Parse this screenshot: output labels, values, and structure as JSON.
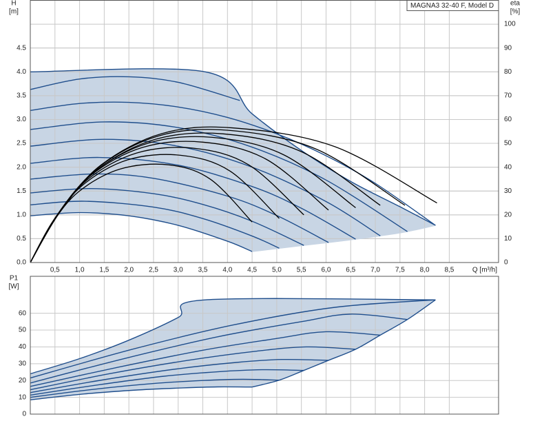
{
  "chart_data": [
    {
      "type": "line",
      "title": "MAGNA3 32-40 F, Model D",
      "ylabel": "H",
      "yunit": "[m]",
      "y2label": "eta",
      "y2unit": "[%]",
      "xlabel": "Q [m³/h]",
      "xlim": [
        0,
        9.5
      ],
      "ylim": [
        0,
        5.5
      ],
      "y2lim": [
        0,
        110
      ],
      "xticks": [
        {
          "value": 0.5,
          "label": "0,5"
        },
        {
          "value": 1,
          "label": "1,0"
        },
        {
          "value": 1.5,
          "label": "1,5"
        },
        {
          "value": 2,
          "label": "2,0"
        },
        {
          "value": 2.5,
          "label": "2,5"
        },
        {
          "value": 3,
          "label": "3,0"
        },
        {
          "value": 3.5,
          "label": "3,5"
        },
        {
          "value": 4,
          "label": "4,0"
        },
        {
          "value": 4.5,
          "label": "4,5"
        },
        {
          "value": 5,
          "label": "5,0"
        },
        {
          "value": 5.5,
          "label": "5,5"
        },
        {
          "value": 6,
          "label": "6,0"
        },
        {
          "value": 6.5,
          "label": "6,5"
        },
        {
          "value": 7,
          "label": "7,0"
        },
        {
          "value": 7.5,
          "label": "7,5"
        },
        {
          "value": 8,
          "label": "8,0"
        },
        {
          "value": 8.5,
          "label": "8,5"
        }
      ],
      "yticks": [
        {
          "value": 0,
          "label": "0.0"
        },
        0.5,
        {
          "value": 1,
          "label": "1.0"
        },
        1.5,
        {
          "value": 2,
          "label": "2.0"
        },
        2.5,
        {
          "value": 3,
          "label": "3.0"
        },
        3.5,
        {
          "value": 4,
          "label": "4.0"
        },
        4.5
      ],
      "y2ticks": [
        0,
        10,
        20,
        30,
        40,
        50,
        60,
        70,
        80,
        90,
        100
      ],
      "grid": true,
      "fill_color": "#c8d5e4",
      "series": [
        {
          "color": "#1f4e8c",
          "x": [
            0,
            3.55,
            4.5,
            5.5,
            6.5,
            7.5,
            8.22
          ],
          "values": [
            4.0,
            4.0,
            3.12,
            2.35,
            1.7,
            1.17,
            0.78
          ]
        },
        {
          "color": "#c8d5e4",
          "x": [
            4.5,
            5.05,
            5.55,
            6.05,
            6.6,
            7.1,
            7.65,
            8.22
          ],
          "values": [
            0.23,
            0.3,
            0.36,
            0.42,
            0.49,
            0.56,
            0.65,
            0.78
          ]
        },
        {
          "color": "#1f4e8c",
          "x": [
            0,
            1,
            2,
            3,
            4,
            4.5
          ],
          "values": [
            0.98,
            1.047,
            0.98,
            0.78,
            0.447,
            0.23
          ]
        },
        {
          "color": "#1f4e8c",
          "x": [
            0,
            1,
            2,
            3,
            4.25
          ],
          "values": [
            3.63,
            3.85,
            3.896,
            3.78,
            3.4
          ]
        },
        {
          "color": "#1f4e8c",
          "x": [
            0,
            1,
            2,
            3,
            4,
            5,
            6,
            7,
            8.22
          ],
          "values": [
            3.19,
            3.336,
            3.36,
            3.263,
            3.044,
            2.7,
            2.24,
            1.66,
            0.78
          ]
        },
        {
          "color": "#1f4e8c",
          "x": [
            0,
            1.5,
            3,
            4.5,
            6,
            7.65
          ],
          "values": [
            2.79,
            2.95,
            2.83,
            2.42,
            1.73,
            0.65
          ]
        },
        {
          "color": "#1f4e8c",
          "x": [
            0,
            1.5,
            3,
            4.5,
            6,
            7.1
          ],
          "values": [
            2.44,
            2.585,
            2.44,
            2.0,
            1.28,
            0.56
          ]
        },
        {
          "color": "#1f4e8c",
          "x": [
            0,
            1.4,
            3,
            4.5,
            5.5,
            6.6
          ],
          "values": [
            2.08,
            2.204,
            2.042,
            1.595,
            1.138,
            0.49
          ]
        },
        {
          "color": "#1f4e8c",
          "x": [
            0,
            1.3,
            2.5,
            4,
            5,
            6.05
          ],
          "values": [
            1.75,
            1.858,
            1.766,
            1.393,
            0.986,
            0.42
          ]
        },
        {
          "color": "#1f4e8c",
          "x": [
            0,
            1.2,
            2.5,
            3.5,
            4.5,
            5.55
          ],
          "values": [
            1.46,
            1.551,
            1.444,
            1.218,
            0.866,
            0.36
          ]
        },
        {
          "color": "#1f4e8c",
          "x": [
            0,
            1.1,
            2.5,
            3.5,
            4.5,
            5.05
          ],
          "values": [
            1.21,
            1.286,
            1.163,
            0.922,
            0.556,
            0.3
          ]
        },
        {
          "color": "#000000",
          "axis": "y2",
          "x": [
            0,
            0.62,
            1.44,
            2.67,
            4.1,
            6.18,
            8.25
          ],
          "values": [
            0,
            21.8,
            41.0,
            54.1,
            56.5,
            48.6,
            25
          ]
        },
        {
          "color": "#000000",
          "axis": "y2",
          "x": [
            0,
            0.6,
            1.4,
            2.6,
            4.0,
            5.8,
            7.6
          ],
          "values": [
            0,
            21.4,
            40.2,
            53.1,
            55.5,
            47.6,
            24
          ]
        },
        {
          "color": "#000000",
          "axis": "y2",
          "x": [
            0,
            0.59,
            1.37,
            2.54,
            3.9,
            5.5,
            7.1
          ],
          "values": [
            0,
            20.8,
            39.2,
            51.7,
            54,
            46.5,
            24
          ]
        },
        {
          "color": "#000000",
          "axis": "y2",
          "x": [
            0,
            0.56,
            1.3,
            2.41,
            3.7,
            5.15,
            6.6
          ],
          "values": [
            0,
            20.3,
            38.1,
            50.2,
            52.5,
            45.1,
            23
          ]
        },
        {
          "color": "#000000",
          "axis": "y2",
          "x": [
            0,
            0.53,
            1.23,
            2.28,
            3.5,
            4.78,
            6.05
          ],
          "values": [
            0,
            19.5,
            36.6,
            48.3,
            50.5,
            43.4,
            22
          ]
        },
        {
          "color": "#000000",
          "axis": "y2",
          "x": [
            0,
            0.5,
            1.16,
            2.15,
            3.3,
            4.43,
            5.55
          ],
          "values": [
            0,
            18.5,
            34.8,
            45.9,
            48,
            41,
            20
          ]
        },
        {
          "color": "#000000",
          "axis": "y2",
          "x": [
            0,
            0.46,
            1.07,
            1.98,
            3.05,
            4.05,
            5.05
          ],
          "values": [
            0,
            17.4,
            32.6,
            43.1,
            45,
            38.4,
            18.5
          ]
        },
        {
          "color": "#000000",
          "axis": "y2",
          "x": [
            0,
            0.42,
            0.98,
            1.82,
            2.8,
            3.65,
            4.5
          ],
          "values": [
            0,
            15.8,
            29.7,
            39.2,
            41,
            35,
            17
          ]
        }
      ]
    },
    {
      "type": "line",
      "ylabel": "P1",
      "yunit": "[W]",
      "xlim": [
        0,
        9.5
      ],
      "ylim": [
        0,
        82
      ],
      "xgrid": [
        0.5,
        1,
        1.5,
        2,
        2.5,
        3,
        3.5,
        4,
        4.5,
        5,
        5.5,
        6,
        6.5,
        7,
        7.5,
        8,
        8.5
      ],
      "yticks": [
        0,
        10,
        20,
        30,
        40,
        50,
        60
      ],
      "grid": true,
      "fill_color": "#c8d5e4",
      "series": [
        {
          "color": "#1f4e8c",
          "x": [
            0,
            1,
            2,
            3,
            3.55,
            8.22
          ],
          "values": [
            24,
            33,
            44,
            57.5,
            68,
            68
          ]
        },
        {
          "color": "#1f4e8c",
          "x": [
            4.5,
            5.05,
            5.55,
            6.05,
            6.6,
            7.1,
            7.65,
            8.22
          ],
          "values": [
            16.1,
            20.2,
            26,
            32,
            38.6,
            47,
            56.3,
            68
          ]
        },
        {
          "color": "#1f4e8c",
          "x": [
            0,
            1.1,
            2.2,
            3.1,
            3.8,
            4.5
          ],
          "values": [
            8.5,
            12,
            14.4,
            15.6,
            16.2,
            16.1
          ]
        },
        {
          "color": "#1f4e8c",
          "x": [
            0,
            2.06,
            4.11,
            6.17,
            8.22
          ],
          "values": [
            21.5,
            38.5,
            53,
            63.5,
            68
          ]
        },
        {
          "color": "#1f4e8c",
          "x": [
            0,
            1.9,
            3.8,
            5.5,
            6.5,
            7.65
          ],
          "values": [
            18.5,
            33,
            46,
            55,
            59.5,
            56.3
          ]
        },
        {
          "color": "#1f4e8c",
          "x": [
            0,
            1.8,
            3.5,
            5,
            6,
            7.1
          ],
          "values": [
            16.5,
            28,
            38,
            45,
            49,
            47
          ]
        },
        {
          "color": "#1f4e8c",
          "x": [
            0,
            1.6,
            3.2,
            4.6,
            5.6,
            6.6
          ],
          "values": [
            14.5,
            24,
            32,
            37.5,
            40,
            38.6
          ]
        },
        {
          "color": "#1f4e8c",
          "x": [
            0,
            1.5,
            3,
            4.2,
            5.1,
            6.05
          ],
          "values": [
            12.8,
            20.5,
            27,
            30.8,
            32.5,
            32
          ]
        },
        {
          "color": "#1f4e8c",
          "x": [
            0,
            1.4,
            2.7,
            3.8,
            4.7,
            5.55
          ],
          "values": [
            11.3,
            17.5,
            22.5,
            25.2,
            26.4,
            26
          ]
        },
        {
          "color": "#1f4e8c",
          "x": [
            0,
            1.3,
            2.5,
            3.5,
            4.3,
            5.05
          ],
          "values": [
            10,
            14.8,
            18.2,
            20,
            20.7,
            20.2
          ]
        }
      ]
    }
  ]
}
